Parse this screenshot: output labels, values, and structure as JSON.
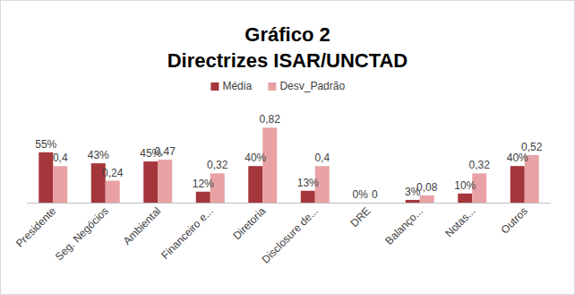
{
  "chart_data": {
    "type": "bar",
    "title": "Gráfico 2",
    "subtitle": "Directrizes ISAR/UNCTAD",
    "categories": [
      "Presidente",
      "Seg. Negócios",
      "Ambiental",
      "Financeiro e...",
      "Diretoria",
      "Disclosure de...",
      "DRE",
      "Balanço...",
      "Notas...",
      "Outros"
    ],
    "series": [
      {
        "name": "Média",
        "color": "#a5363b",
        "values": [
          55,
          43,
          45,
          12,
          40,
          13,
          0,
          3,
          10,
          40
        ],
        "value_labels": [
          "55%",
          "43%",
          "45%",
          "12%",
          "40%",
          "13%",
          "0%",
          "3%",
          "10%",
          "40%"
        ]
      },
      {
        "name": "Desv_Padrão",
        "color": "#e8a2a5",
        "axis": "y2",
        "values": [
          0.4,
          0.24,
          0.47,
          0.32,
          0.82,
          0.4,
          0,
          0.08,
          0.32,
          0.52
        ],
        "value_labels": [
          "0,4",
          "0,24",
          "0,47",
          "0,32",
          "0,82",
          "0,4",
          "0",
          "0,08",
          "0,32",
          "0,52"
        ]
      }
    ],
    "ylim": [
      0,
      100
    ],
    "y2lim": [
      0,
      1
    ],
    "data_labels": true,
    "tick_labels": "x",
    "grid": false,
    "legend": "top"
  }
}
